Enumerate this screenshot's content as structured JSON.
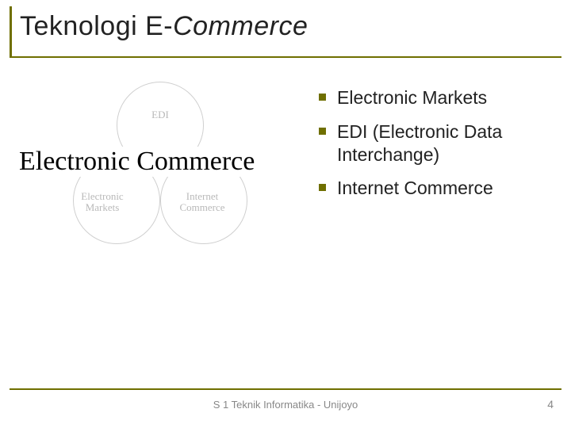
{
  "title": {
    "plain": "Teknologi E-",
    "italic": "Commerce"
  },
  "diagram": {
    "heading": "Electronic Commerce",
    "circle_top_label": "EDI",
    "circle_bl_label": "Electronic Markets",
    "circle_br_label": "Internet Commerce",
    "circle_border_color": "#cfcfcf",
    "label_color": "#b9b9b9",
    "heading_fontsize": 34
  },
  "bullets": [
    "Electronic Markets",
    "EDI (Electronic Data Interchange)",
    "Internet Commerce"
  ],
  "accent_color": "#6f6f00",
  "footer": "S 1 Teknik Informatika - Unijoyo",
  "page_number": "4"
}
